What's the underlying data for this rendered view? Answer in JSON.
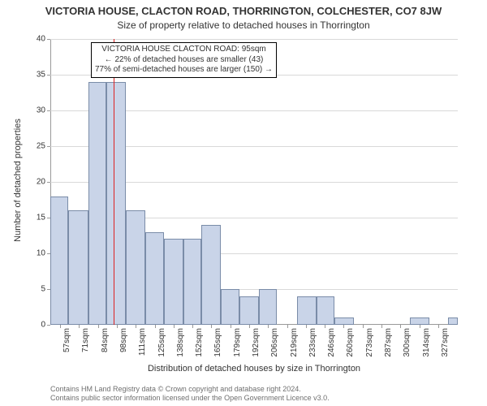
{
  "title_main": "VICTORIA HOUSE, CLACTON ROAD, THORRINGTON, COLCHESTER, CO7 8JW",
  "title_sub": "Size of property relative to detached houses in Thorrington",
  "ylabel": "Number of detached properties",
  "xlabel": "Distribution of detached houses by size in Thorrington",
  "footer_line1": "Contains HM Land Registry data © Crown copyright and database right 2024.",
  "footer_line2": "Contains public sector information licensed under the Open Government Licence v3.0.",
  "annotation": {
    "line1": "VICTORIA HOUSE CLACTON ROAD: 95sqm",
    "line2": "← 22% of detached houses are smaller (43)",
    "line3": "77% of semi-detached houses are larger (150) →"
  },
  "chart": {
    "type": "histogram",
    "background_color": "#ffffff",
    "grid_color": "#d9d9d9",
    "axis_color": "#999999",
    "bar_fill": "#c9d4e8",
    "bar_border": "#7a8ca8",
    "marker_color": "#d22",
    "marker_x": 95,
    "xlim": [
      50,
      341
    ],
    "ylim": [
      0,
      40
    ],
    "ytick_step": 5,
    "xtick_start": 57,
    "xtick_step": 13.5,
    "xtick_count": 21,
    "xtick_suffix": "sqm",
    "label_fontsize": 10,
    "title_fontsize_main": 13,
    "title_fontsize_sub": 12,
    "axis_label_fontsize": 11,
    "bars": [
      {
        "x0": 50,
        "x1": 63,
        "y": 18
      },
      {
        "x0": 63,
        "x1": 77,
        "y": 16
      },
      {
        "x0": 77,
        "x1": 90,
        "y": 34
      },
      {
        "x0": 90,
        "x1": 104,
        "y": 34
      },
      {
        "x0": 104,
        "x1": 118,
        "y": 16
      },
      {
        "x0": 118,
        "x1": 131,
        "y": 13
      },
      {
        "x0": 131,
        "x1": 145,
        "y": 12
      },
      {
        "x0": 145,
        "x1": 158,
        "y": 12
      },
      {
        "x0": 158,
        "x1": 172,
        "y": 14
      },
      {
        "x0": 172,
        "x1": 185,
        "y": 5
      },
      {
        "x0": 185,
        "x1": 199,
        "y": 4
      },
      {
        "x0": 199,
        "x1": 212,
        "y": 5
      },
      {
        "x0": 212,
        "x1": 226,
        "y": 0
      },
      {
        "x0": 226,
        "x1": 240,
        "y": 4
      },
      {
        "x0": 240,
        "x1": 253,
        "y": 4
      },
      {
        "x0": 253,
        "x1": 267,
        "y": 1
      },
      {
        "x0": 267,
        "x1": 280,
        "y": 0
      },
      {
        "x0": 280,
        "x1": 294,
        "y": 0
      },
      {
        "x0": 294,
        "x1": 307,
        "y": 0
      },
      {
        "x0": 307,
        "x1": 321,
        "y": 1
      },
      {
        "x0": 321,
        "x1": 334,
        "y": 0
      },
      {
        "x0": 334,
        "x1": 341,
        "y": 1
      }
    ]
  }
}
